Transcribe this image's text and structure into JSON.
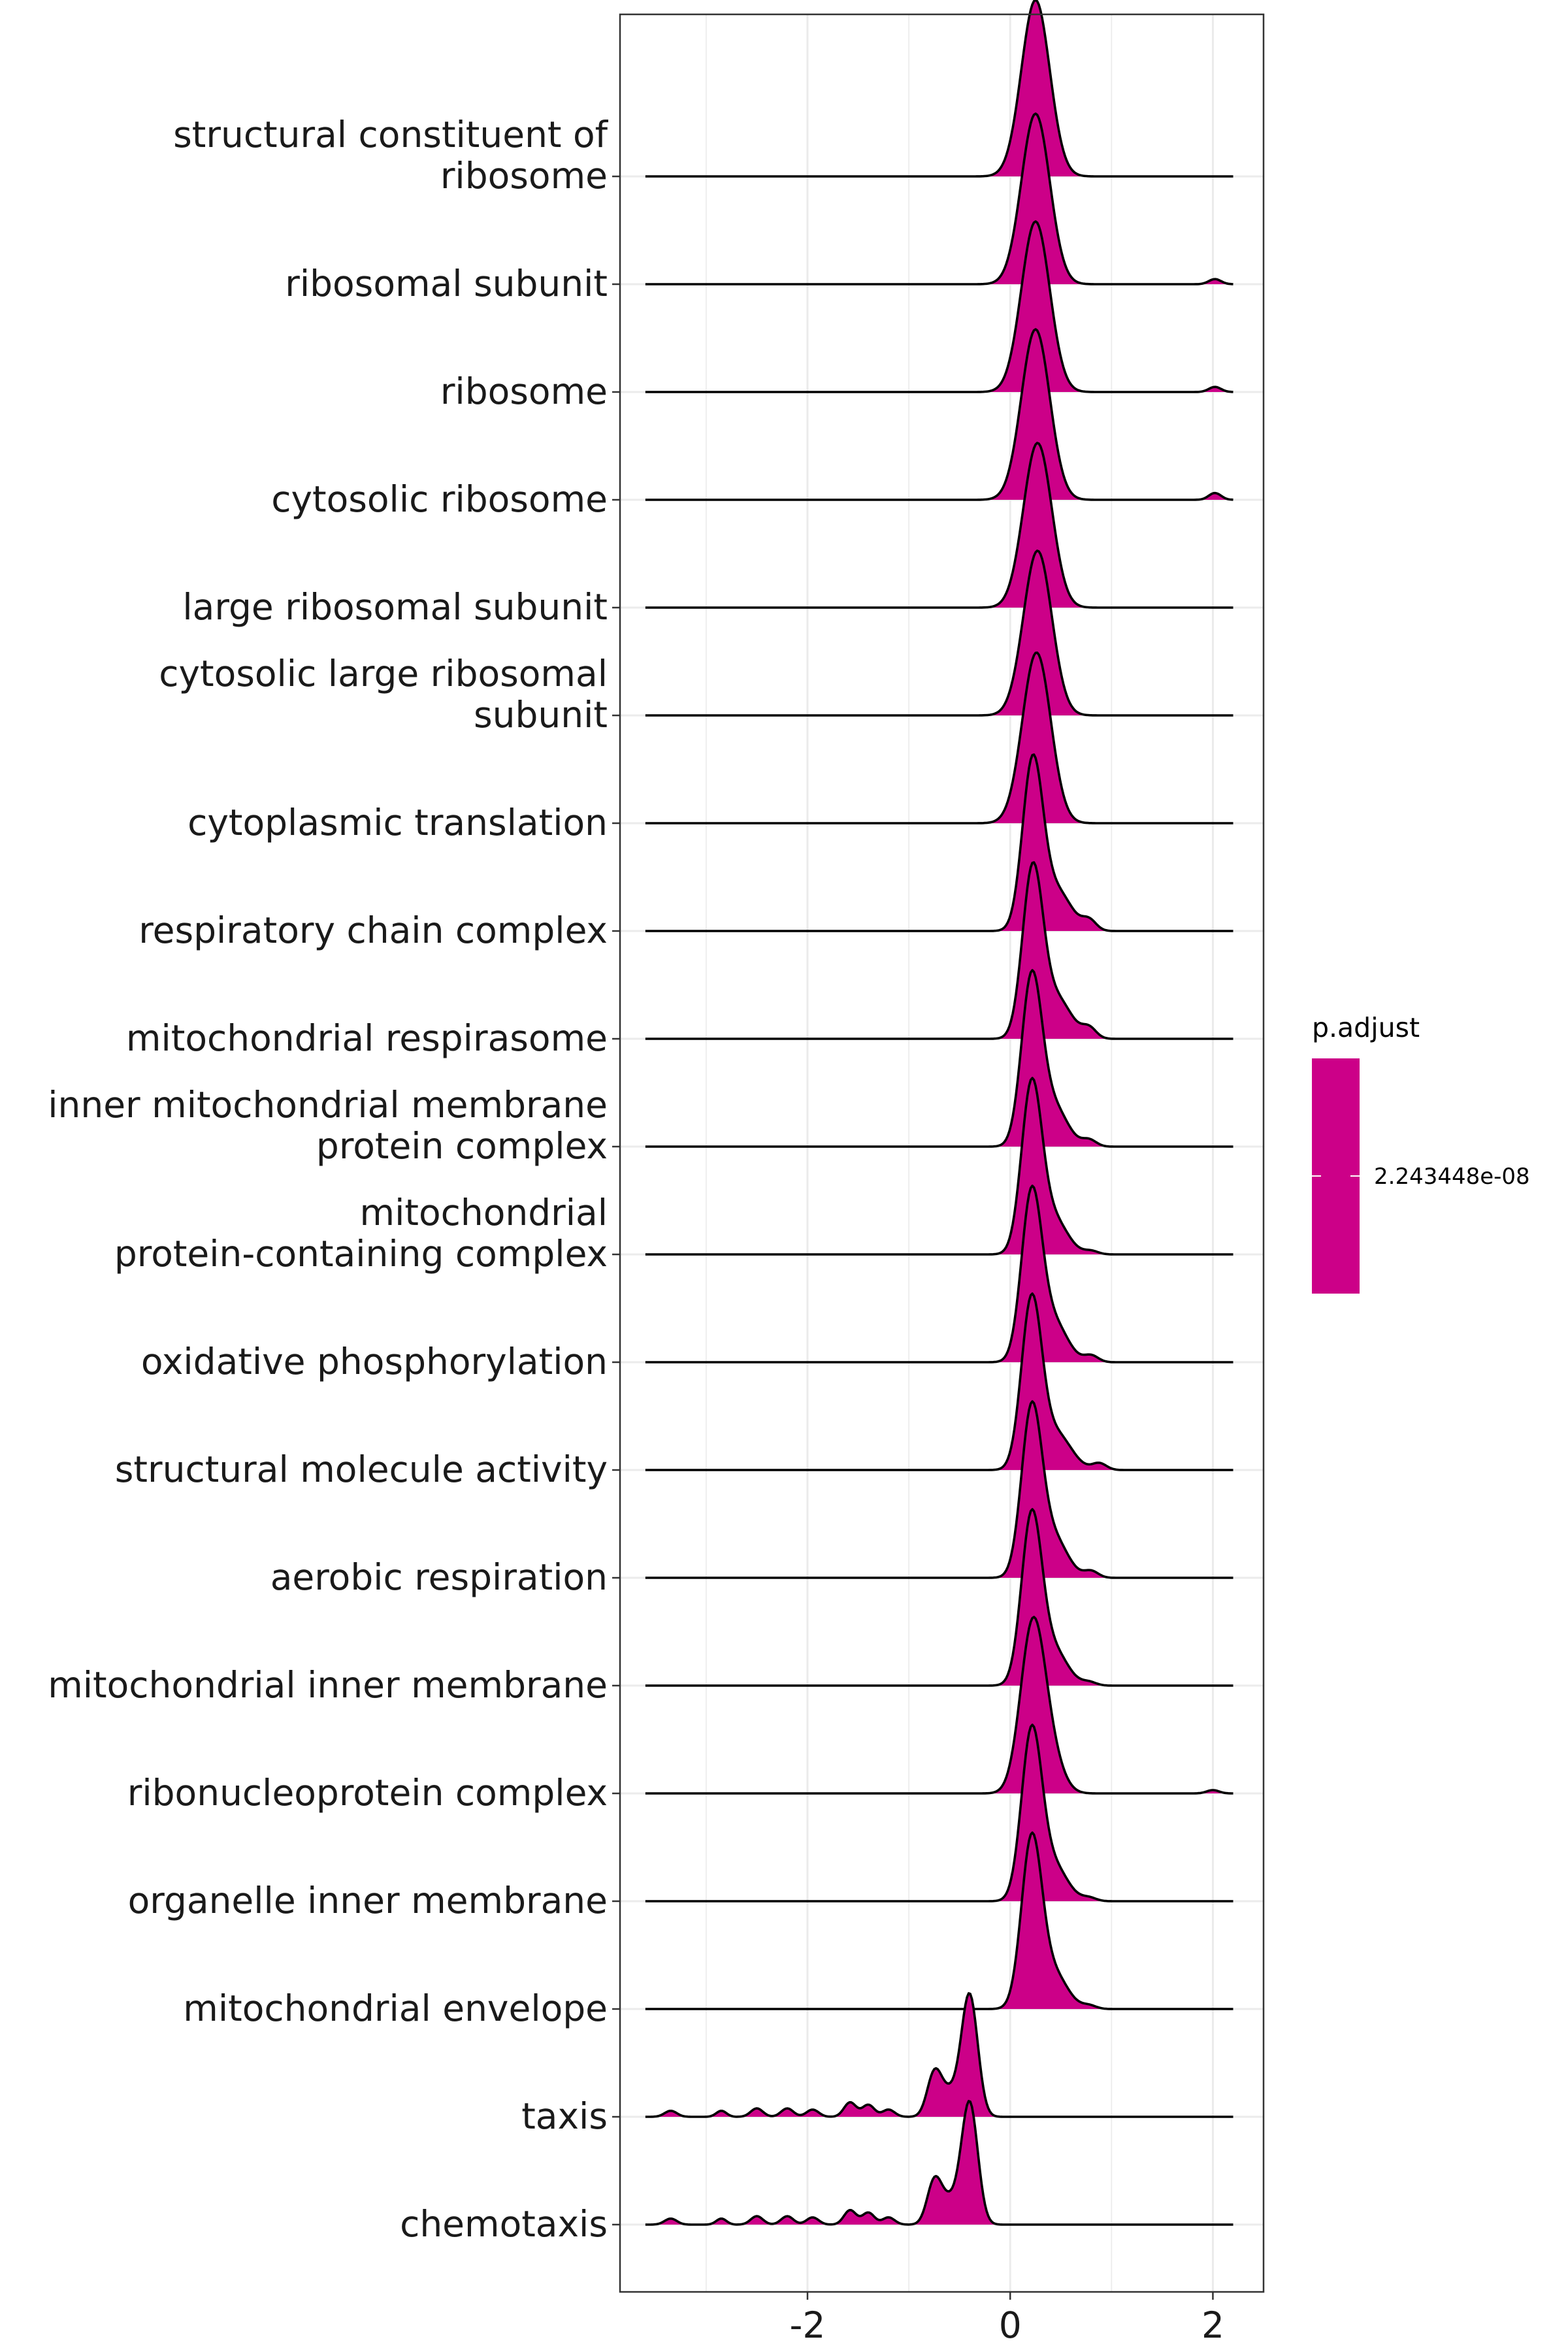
{
  "chart_data": {
    "type": "ridgeline",
    "x_range": [
      -3.6,
      2.2
    ],
    "xlim": [
      -3.85,
      2.5
    ],
    "x_ticks": [
      -2,
      0,
      2
    ],
    "x_tick_labels": [
      "-2",
      "0",
      "2"
    ],
    "x_gridlines": [
      -3,
      -2,
      -1,
      0,
      1,
      2
    ],
    "grid": true,
    "fill_color": "#CC0088",
    "legend": {
      "title": "p.adjust",
      "placement": "right",
      "value_label": "2.243448e-08",
      "color": "#CC0088"
    },
    "categories": [
      {
        "label": [
          "structural constituent of",
          "ribosome"
        ],
        "peak_height": 1.5,
        "components": [
          [
            0.25,
            0.14,
            1.0
          ]
        ]
      },
      {
        "label": [
          "ribosomal subunit"
        ],
        "peak_height": 1.45,
        "components": [
          [
            0.25,
            0.14,
            1.0
          ],
          [
            2.02,
            0.06,
            0.03
          ]
        ]
      },
      {
        "label": [
          "ribosome"
        ],
        "peak_height": 1.45,
        "components": [
          [
            0.25,
            0.14,
            1.0
          ],
          [
            2.02,
            0.06,
            0.03
          ]
        ]
      },
      {
        "label": [
          "cytosolic ribosome"
        ],
        "peak_height": 1.45,
        "components": [
          [
            0.25,
            0.14,
            1.0
          ],
          [
            2.02,
            0.06,
            0.04
          ]
        ]
      },
      {
        "label": [
          "large ribosomal subunit"
        ],
        "peak_height": 1.4,
        "components": [
          [
            0.27,
            0.14,
            1.0
          ]
        ]
      },
      {
        "label": [
          "cytosolic large ribosomal",
          "subunit"
        ],
        "peak_height": 1.4,
        "components": [
          [
            0.27,
            0.14,
            1.0
          ]
        ]
      },
      {
        "label": [
          "cytoplasmic translation"
        ],
        "peak_height": 1.45,
        "components": [
          [
            0.26,
            0.14,
            1.0
          ]
        ]
      },
      {
        "label": [
          "respiratory chain complex"
        ],
        "peak_height": 1.5,
        "components": [
          [
            0.22,
            0.1,
            1.0
          ],
          [
            0.45,
            0.15,
            0.25
          ],
          [
            0.78,
            0.07,
            0.06
          ]
        ]
      },
      {
        "label": [
          "mitochondrial respirasome"
        ],
        "peak_height": 1.5,
        "components": [
          [
            0.22,
            0.1,
            1.0
          ],
          [
            0.45,
            0.15,
            0.25
          ],
          [
            0.78,
            0.07,
            0.06
          ]
        ]
      },
      {
        "label": [
          "inner mitochondrial membrane",
          "protein complex"
        ],
        "peak_height": 1.5,
        "components": [
          [
            0.21,
            0.1,
            1.0
          ],
          [
            0.42,
            0.14,
            0.25
          ],
          [
            0.78,
            0.07,
            0.04
          ]
        ]
      },
      {
        "label": [
          "mitochondrial",
          "protein-containing complex"
        ],
        "peak_height": 1.5,
        "components": [
          [
            0.21,
            0.1,
            1.0
          ],
          [
            0.42,
            0.14,
            0.22
          ],
          [
            0.8,
            0.07,
            0.02
          ]
        ]
      },
      {
        "label": [
          "oxidative phosphorylation"
        ],
        "peak_height": 1.5,
        "components": [
          [
            0.21,
            0.1,
            1.0
          ],
          [
            0.42,
            0.14,
            0.25
          ],
          [
            0.8,
            0.07,
            0.04
          ]
        ]
      },
      {
        "label": [
          "structural molecule activity"
        ],
        "peak_height": 1.5,
        "components": [
          [
            0.21,
            0.1,
            1.0
          ],
          [
            0.45,
            0.15,
            0.22
          ],
          [
            0.88,
            0.07,
            0.04
          ]
        ]
      },
      {
        "label": [
          "aerobic respiration"
        ],
        "peak_height": 1.5,
        "components": [
          [
            0.21,
            0.1,
            1.0
          ],
          [
            0.42,
            0.14,
            0.25
          ],
          [
            0.8,
            0.07,
            0.04
          ]
        ]
      },
      {
        "label": [
          "mitochondrial inner membrane"
        ],
        "peak_height": 1.5,
        "components": [
          [
            0.21,
            0.1,
            1.0
          ],
          [
            0.42,
            0.14,
            0.22
          ],
          [
            0.78,
            0.07,
            0.02
          ]
        ]
      },
      {
        "label": [
          "ribonucleoprotein complex"
        ],
        "peak_height": 1.5,
        "components": [
          [
            0.22,
            0.12,
            1.0
          ],
          [
            0.4,
            0.12,
            0.2
          ],
          [
            2.0,
            0.06,
            0.02
          ]
        ]
      },
      {
        "label": [
          "organelle inner membrane"
        ],
        "peak_height": 1.5,
        "components": [
          [
            0.21,
            0.1,
            1.0
          ],
          [
            0.42,
            0.14,
            0.22
          ],
          [
            0.78,
            0.07,
            0.02
          ]
        ]
      },
      {
        "label": [
          "mitochondrial envelope"
        ],
        "peak_height": 1.5,
        "components": [
          [
            0.21,
            0.1,
            1.0
          ],
          [
            0.42,
            0.14,
            0.22
          ],
          [
            0.78,
            0.07,
            0.02
          ]
        ]
      },
      {
        "label": [
          "taxis"
        ],
        "peak_height": 1.05,
        "components": [
          [
            -0.4,
            0.08,
            1.0
          ],
          [
            -0.75,
            0.07,
            0.33
          ],
          [
            -0.6,
            0.1,
            0.2
          ],
          [
            -1.58,
            0.06,
            0.12
          ],
          [
            -1.4,
            0.06,
            0.1
          ],
          [
            -2.5,
            0.06,
            0.07
          ],
          [
            -2.2,
            0.06,
            0.07
          ],
          [
            -1.95,
            0.06,
            0.06
          ],
          [
            -1.2,
            0.06,
            0.06
          ],
          [
            -3.35,
            0.06,
            0.05
          ],
          [
            -2.85,
            0.05,
            0.05
          ]
        ]
      },
      {
        "label": [
          "chemotaxis"
        ],
        "peak_height": 1.05,
        "components": [
          [
            -0.4,
            0.08,
            1.0
          ],
          [
            -0.75,
            0.07,
            0.33
          ],
          [
            -0.6,
            0.1,
            0.2
          ],
          [
            -1.58,
            0.06,
            0.12
          ],
          [
            -1.4,
            0.06,
            0.1
          ],
          [
            -2.5,
            0.06,
            0.07
          ],
          [
            -2.2,
            0.06,
            0.07
          ],
          [
            -1.95,
            0.06,
            0.06
          ],
          [
            -1.2,
            0.06,
            0.06
          ],
          [
            -3.35,
            0.06,
            0.05
          ],
          [
            -2.85,
            0.05,
            0.05
          ]
        ]
      }
    ]
  }
}
